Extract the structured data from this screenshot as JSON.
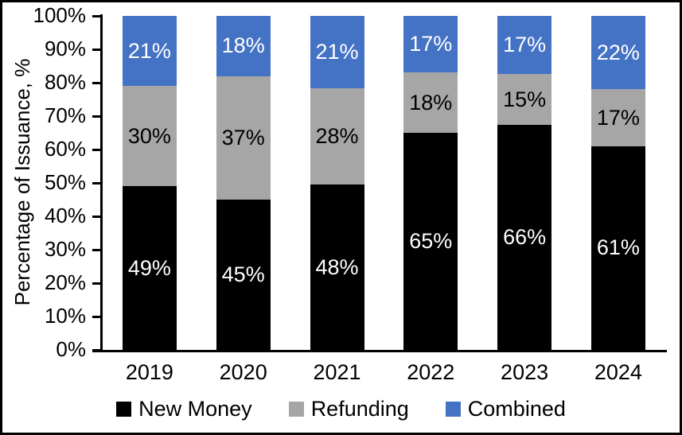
{
  "chart_data": {
    "type": "bar",
    "stacked": true,
    "title": "",
    "xlabel": "",
    "ylabel": "Percentage of Issuance, %",
    "ylim": [
      0,
      100
    ],
    "ytick_labels": [
      "0%",
      "10%",
      "20%",
      "30%",
      "40%",
      "50%",
      "60%",
      "70%",
      "80%",
      "90%",
      "100%"
    ],
    "categories": [
      "2019",
      "2020",
      "2021",
      "2022",
      "2023",
      "2024"
    ],
    "series": [
      {
        "name": "New Money",
        "color": "#000000",
        "label_color": "#FFFFFF",
        "values": [
          49,
          45,
          48,
          65,
          66,
          61
        ]
      },
      {
        "name": "Refunding",
        "color": "#A6A6A6",
        "label_color": "#000000",
        "values": [
          30,
          37,
          28,
          18,
          15,
          17
        ]
      },
      {
        "name": "Combined",
        "color": "#4472C4",
        "label_color": "#FFFFFF",
        "values": [
          21,
          18,
          21,
          17,
          17,
          22
        ]
      }
    ],
    "data_label_suffix": "%",
    "legend_position": "bottom",
    "grid": false,
    "axis_color": "#000000",
    "background_color": "#FFFFFF"
  }
}
